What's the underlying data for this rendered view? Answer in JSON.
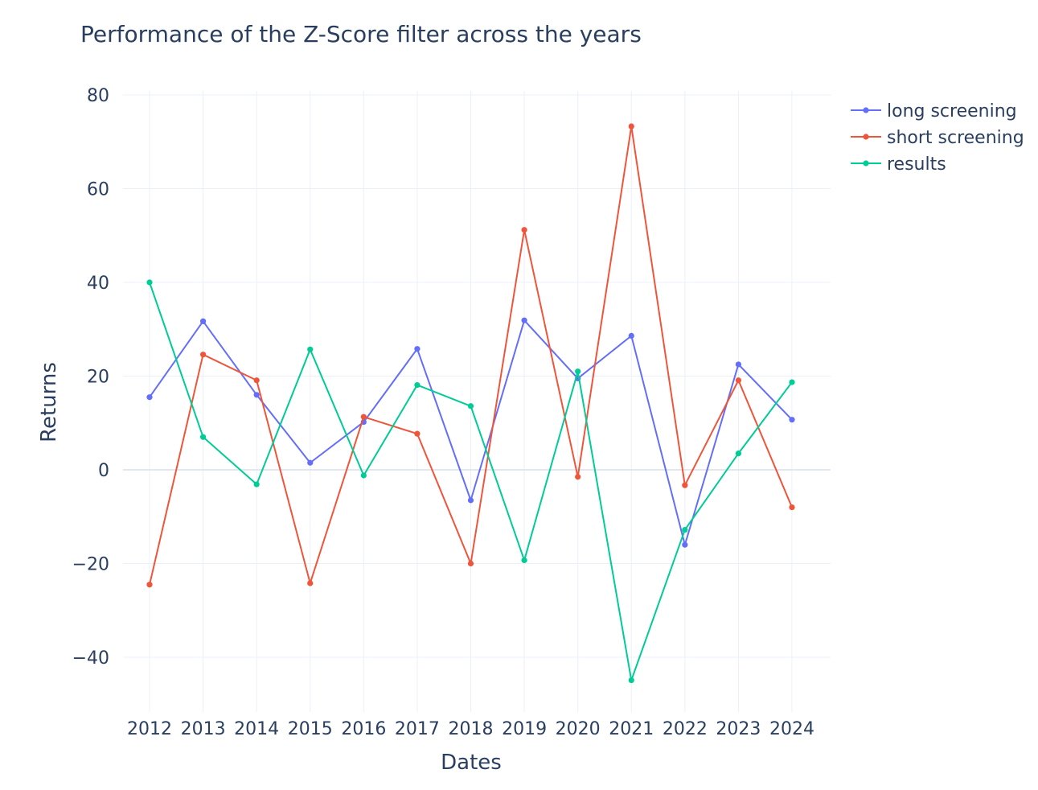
{
  "chart_data": {
    "type": "line",
    "title": "Performance of the Z-Score filter across the years",
    "xlabel": "Dates",
    "ylabel": "Returns",
    "x": [
      "2012",
      "2013",
      "2014",
      "2015",
      "2016",
      "2017",
      "2018",
      "2019",
      "2020",
      "2021",
      "2022",
      "2023",
      "2024"
    ],
    "ylim": [
      -52,
      81
    ],
    "yticks": [
      80,
      60,
      40,
      20,
      0,
      -20,
      -40
    ],
    "ytick_labels": [
      "80",
      "60",
      "40",
      "20",
      "0",
      "−20",
      "−40"
    ],
    "grid": true,
    "legend_position": "top-right",
    "series": [
      {
        "name": "long screening",
        "color": "#636efa",
        "values": [
          15.5,
          31.7,
          16.0,
          1.5,
          10.2,
          25.8,
          -6.5,
          31.9,
          19.5,
          28.6,
          -16.0,
          22.5,
          10.7
        ]
      },
      {
        "name": "short screening",
        "color": "#ef553b",
        "values": [
          -24.5,
          24.6,
          19.1,
          -24.2,
          11.3,
          7.7,
          -20.0,
          51.2,
          -1.5,
          73.3,
          -3.3,
          19.1,
          -8.0
        ]
      },
      {
        "name": "results",
        "color": "#00cc96",
        "values": [
          40.0,
          7.0,
          -3.1,
          25.7,
          -1.2,
          18.1,
          13.6,
          -19.3,
          21.0,
          -44.9,
          -12.8,
          3.5,
          18.7
        ]
      }
    ]
  }
}
